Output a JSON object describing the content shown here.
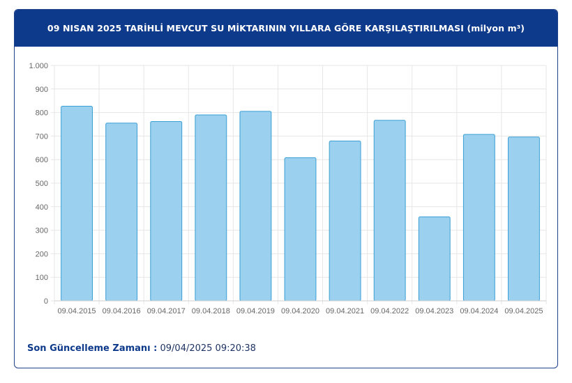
{
  "header": {
    "title": "09 NISAN 2025 TARİHLİ MEVCUT SU MİKTARININ YILLARA GÖRE KARŞILAŞTIRILMASI (milyon m³)"
  },
  "footer": {
    "label": "Son Güncelleme Zamanı :",
    "value": "09/04/2025 09:20:38"
  },
  "colors": {
    "header_bg": "#0e3a8c",
    "bar_fill": "#9bd0ef",
    "bar_stroke": "#3a9fd5",
    "grid": "#e6e6e6"
  },
  "chart_data": {
    "type": "bar",
    "title": "",
    "xlabel": "",
    "ylabel": "",
    "categories": [
      "09.04.2015",
      "09.04.2016",
      "09.04.2017",
      "09.04.2018",
      "09.04.2019",
      "09.04.2020",
      "09.04.2021",
      "09.04.2022",
      "09.04.2023",
      "09.04.2024",
      "09.04.2025"
    ],
    "values": [
      827,
      755,
      762,
      790,
      805,
      608,
      679,
      767,
      357,
      707,
      696
    ],
    "ylim": [
      0,
      1000
    ],
    "yticks": [
      0,
      100,
      200,
      300,
      400,
      500,
      600,
      700,
      800,
      900,
      1000
    ],
    "ytick_labels": [
      "0",
      "100",
      "200",
      "300",
      "400",
      "500",
      "600",
      "700",
      "800",
      "900",
      "1.000"
    ],
    "grid": true,
    "legend": "none"
  }
}
